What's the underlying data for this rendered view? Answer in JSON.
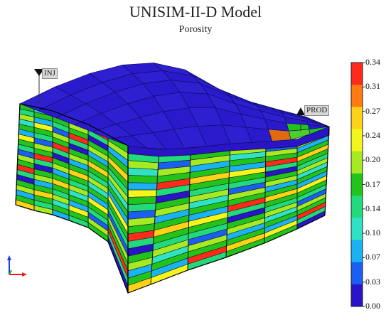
{
  "title": "UNISIM-II-D Model",
  "subtitle": "Porosity",
  "colorbar": {
    "ticks": [
      "0.34",
      "0.31",
      "0.27",
      "0.24",
      "0.20",
      "0.17",
      "0.14",
      "0.10",
      "0.07",
      "0.03",
      "0.00"
    ],
    "colors": [
      "#ff2a1a",
      "#ff7a10",
      "#ffd21a",
      "#f4f51a",
      "#a6ea22",
      "#22c41c",
      "#22d97c",
      "#2ee2c4",
      "#1ab2f2",
      "#1a5ef2",
      "#2a14c8"
    ]
  },
  "wells": [
    {
      "name": "INJ"
    },
    {
      "name": "PROD"
    }
  ],
  "layer_colors": [
    "#22c41c",
    "#22d97c",
    "#a6ea22",
    "#2ee2c4",
    "#22c41c",
    "#1ab2f2",
    "#f4f51a",
    "#22c41c",
    "#22d97c",
    "#1a5ef2",
    "#a6ea22",
    "#22c41c",
    "#ff2a1a",
    "#22d97c",
    "#2a14c8",
    "#22c41c",
    "#a6ea22",
    "#1ab2f2",
    "#22c41c",
    "#ffd21a"
  ]
}
